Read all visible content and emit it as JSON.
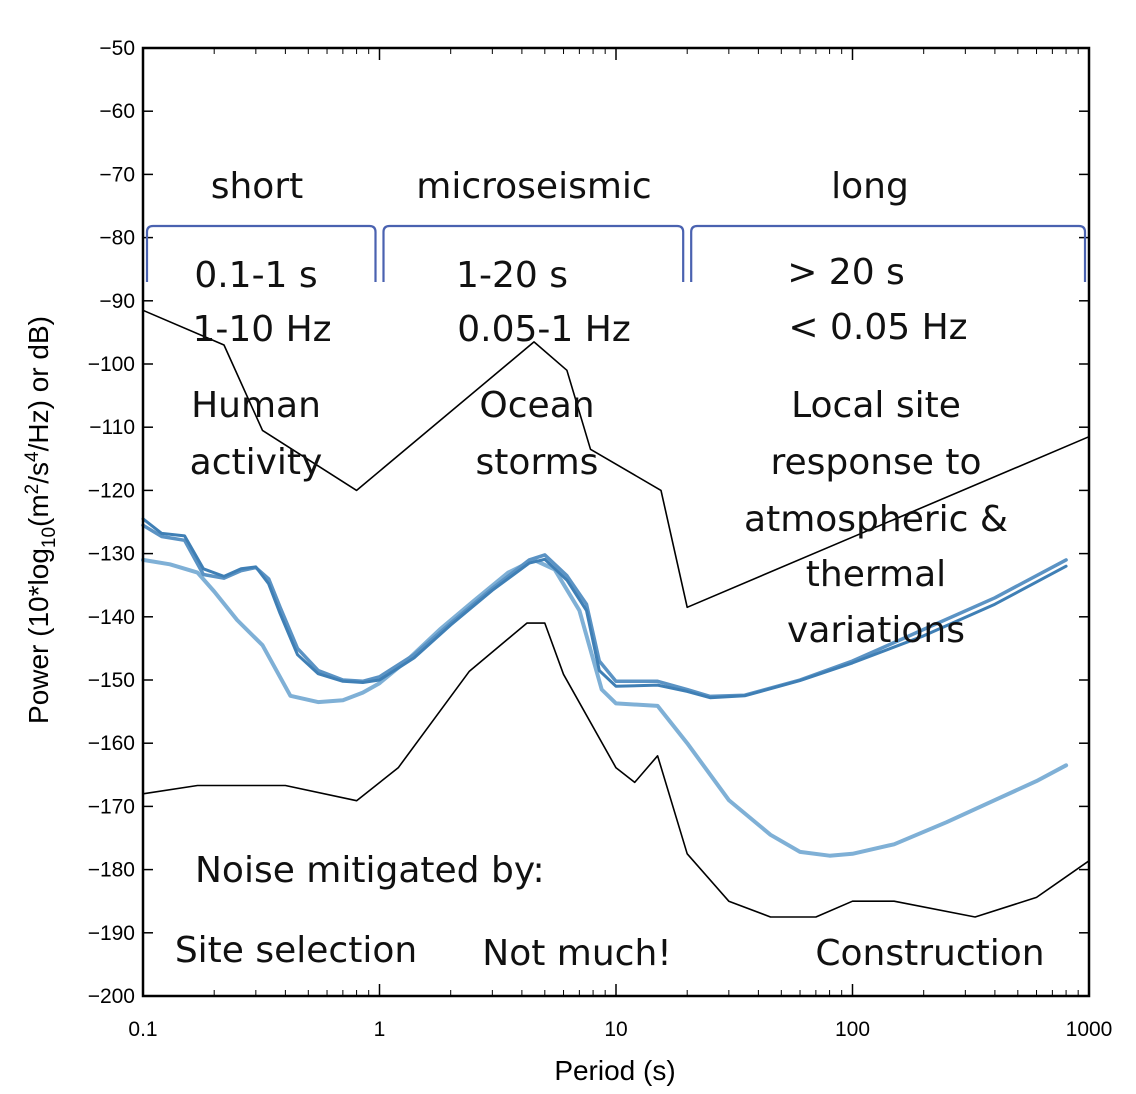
{
  "chart_data": {
    "type": "line",
    "title": "",
    "xlabel": "Period (s)",
    "ylabel_parts": {
      "prefix": "Power (10*log",
      "sub10": "10",
      "open": "(m",
      "sup2": "2",
      "mid": "/s",
      "sup4": "4",
      "end": "/Hz) or dB)"
    },
    "xscale": "log",
    "xlim": [
      0.1,
      1000
    ],
    "ylim": [
      -200,
      -50
    ],
    "x_ticks": [
      0.1,
      1,
      10,
      100,
      1000
    ],
    "x_tick_labels": [
      "0.1",
      "1",
      "10",
      "100",
      "1000"
    ],
    "y_ticks": [
      -50,
      -60,
      -70,
      -80,
      -90,
      -100,
      -110,
      -120,
      -130,
      -140,
      -150,
      -160,
      -170,
      -180,
      -190,
      -200
    ],
    "y_tick_labels": [
      "−50",
      "−60",
      "−70",
      "−80",
      "−90",
      "−100",
      "−110",
      "−120",
      "−130",
      "−140",
      "−150",
      "−160",
      "−170",
      "−180",
      "−190",
      "−200"
    ],
    "grid": false,
    "colors": {
      "model": "#000000",
      "station_dark": "#3f7fb5",
      "station_mid": "#5b93c4",
      "station_light": "#7fb0d6",
      "brace": "#4a62b0"
    },
    "series": [
      {
        "role": "model",
        "points": [
          [
            0.1,
            -91.5
          ],
          [
            0.22,
            -97
          ],
          [
            0.32,
            -110.5
          ],
          [
            0.8,
            -120
          ],
          [
            4.5,
            -96.5
          ],
          [
            6.2,
            -101
          ],
          [
            7.8,
            -113.5
          ],
          [
            15.5,
            -120
          ],
          [
            20,
            -138.5
          ],
          [
            1000,
            -111.5
          ]
        ]
      },
      {
        "role": "model",
        "points": [
          [
            0.1,
            -168
          ],
          [
            0.17,
            -166.7
          ],
          [
            0.4,
            -166.7
          ],
          [
            0.8,
            -169.1
          ],
          [
            1.2,
            -163.9
          ],
          [
            2.4,
            -148.6
          ],
          [
            4.2,
            -141
          ],
          [
            5,
            -141
          ],
          [
            6,
            -149.1
          ],
          [
            10,
            -163.9
          ],
          [
            12,
            -166.2
          ],
          [
            15,
            -162
          ],
          [
            20,
            -177.5
          ],
          [
            30,
            -185
          ],
          [
            45,
            -187.5
          ],
          [
            70,
            -187.5
          ],
          [
            100,
            -185
          ],
          [
            150,
            -185
          ],
          [
            330,
            -187.5
          ],
          [
            600,
            -184.4
          ],
          [
            1000,
            -178.6
          ]
        ]
      },
      {
        "role": "station_light",
        "points": [
          [
            0.1,
            -131
          ],
          [
            0.13,
            -131.7
          ],
          [
            0.17,
            -133
          ],
          [
            0.2,
            -136
          ],
          [
            0.25,
            -140.5
          ],
          [
            0.32,
            -144.5
          ],
          [
            0.42,
            -152.5
          ],
          [
            0.55,
            -153.5
          ],
          [
            0.7,
            -153.2
          ],
          [
            0.85,
            -152
          ],
          [
            1,
            -150.5
          ],
          [
            1.3,
            -147
          ],
          [
            1.8,
            -142
          ],
          [
            2.5,
            -137.5
          ],
          [
            3.5,
            -133
          ],
          [
            4.5,
            -131
          ],
          [
            5.5,
            -132.5
          ],
          [
            7,
            -139
          ],
          [
            8.7,
            -151.5
          ],
          [
            10,
            -153.7
          ],
          [
            15,
            -154.1
          ],
          [
            20,
            -160
          ],
          [
            30,
            -169
          ],
          [
            45,
            -174.5
          ],
          [
            60,
            -177.2
          ],
          [
            80,
            -177.8
          ],
          [
            100,
            -177.5
          ],
          [
            150,
            -176
          ],
          [
            250,
            -172.5
          ],
          [
            400,
            -169
          ],
          [
            600,
            -166
          ],
          [
            800,
            -163.5
          ]
        ]
      },
      {
        "role": "station_mid",
        "points": [
          [
            0.1,
            -125.5
          ],
          [
            0.12,
            -127.3
          ],
          [
            0.15,
            -127.9
          ],
          [
            0.18,
            -133.3
          ],
          [
            0.22,
            -133.9
          ],
          [
            0.26,
            -132.7
          ],
          [
            0.3,
            -132.2
          ],
          [
            0.34,
            -134
          ],
          [
            0.38,
            -138.5
          ],
          [
            0.45,
            -145
          ],
          [
            0.55,
            -148.5
          ],
          [
            0.7,
            -150
          ],
          [
            0.85,
            -150.2
          ],
          [
            1,
            -149.5
          ],
          [
            1.4,
            -146
          ],
          [
            2,
            -141
          ],
          [
            3,
            -135.5
          ],
          [
            4.3,
            -131
          ],
          [
            5,
            -130.2
          ],
          [
            6.2,
            -133.5
          ],
          [
            7.5,
            -138
          ],
          [
            8.5,
            -147
          ],
          [
            10,
            -150.2
          ],
          [
            15,
            -150.2
          ],
          [
            20,
            -151.5
          ],
          [
            25,
            -152.6
          ],
          [
            35,
            -152.4
          ],
          [
            60,
            -150
          ],
          [
            100,
            -147
          ],
          [
            200,
            -142
          ],
          [
            400,
            -137
          ],
          [
            800,
            -131
          ]
        ]
      },
      {
        "role": "station_dark",
        "points": [
          [
            0.1,
            -124.5
          ],
          [
            0.12,
            -126.8
          ],
          [
            0.15,
            -127.2
          ],
          [
            0.18,
            -132.4
          ],
          [
            0.22,
            -133.6
          ],
          [
            0.26,
            -132.4
          ],
          [
            0.3,
            -132.1
          ],
          [
            0.34,
            -134.8
          ],
          [
            0.38,
            -139.5
          ],
          [
            0.45,
            -146
          ],
          [
            0.55,
            -149
          ],
          [
            0.7,
            -150.2
          ],
          [
            0.85,
            -150.4
          ],
          [
            1,
            -150
          ],
          [
            1.4,
            -146.5
          ],
          [
            2,
            -141.3
          ],
          [
            3,
            -135.8
          ],
          [
            4.3,
            -131.5
          ],
          [
            5,
            -130.9
          ],
          [
            6.2,
            -134.2
          ],
          [
            7.5,
            -139
          ],
          [
            8.5,
            -148.5
          ],
          [
            10,
            -151
          ],
          [
            15,
            -150.8
          ],
          [
            20,
            -151.8
          ],
          [
            25,
            -152.8
          ],
          [
            35,
            -152.5
          ],
          [
            60,
            -150.1
          ],
          [
            100,
            -147.3
          ],
          [
            200,
            -143
          ],
          [
            400,
            -138
          ],
          [
            800,
            -132
          ]
        ]
      }
    ],
    "bands": [
      {
        "label": "short",
        "x_from": 0.1,
        "x_to": 1
      },
      {
        "label": "microseismic",
        "x_from": 1,
        "x_to": 20
      },
      {
        "label": "long",
        "x_from": 20,
        "x_to": 1000
      }
    ],
    "annotations": [
      "0.1-1 s",
      "1-10 Hz",
      "Human",
      "activity",
      "1-20 s",
      "0.05-1 Hz",
      "Ocean",
      "storms",
      "> 20 s",
      "< 0.05 Hz",
      "Local site",
      "response to",
      "atmospheric &",
      "thermal",
      "variations",
      "Noise mitigated by:",
      "Site selection",
      "Not much!",
      "Construction"
    ]
  }
}
